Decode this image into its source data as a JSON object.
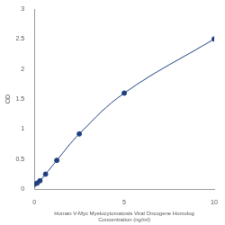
{
  "chart_data": {
    "type": "scatter",
    "x_label": [
      "Human V-Myc Myelocytomatosis Viral Oncogene Homolog",
      "Concentration (ng/ml)"
    ],
    "y_label": "OD",
    "x": [
      0,
      0.156,
      0.3125,
      0.625,
      1.25,
      2.5,
      5,
      10
    ],
    "values": [
      0.08,
      0.1,
      0.14,
      0.25,
      0.48,
      0.92,
      1.6,
      2.5
    ],
    "color": "#1f3f7f",
    "marker": "circle",
    "line_style": "solid",
    "xlim": [
      0,
      10
    ],
    "xticks": [
      0,
      5,
      10
    ],
    "ylim": [
      0,
      3
    ],
    "yticks": [
      0,
      0.5,
      1,
      1.5,
      2,
      2.5,
      3
    ],
    "grid": false
  }
}
